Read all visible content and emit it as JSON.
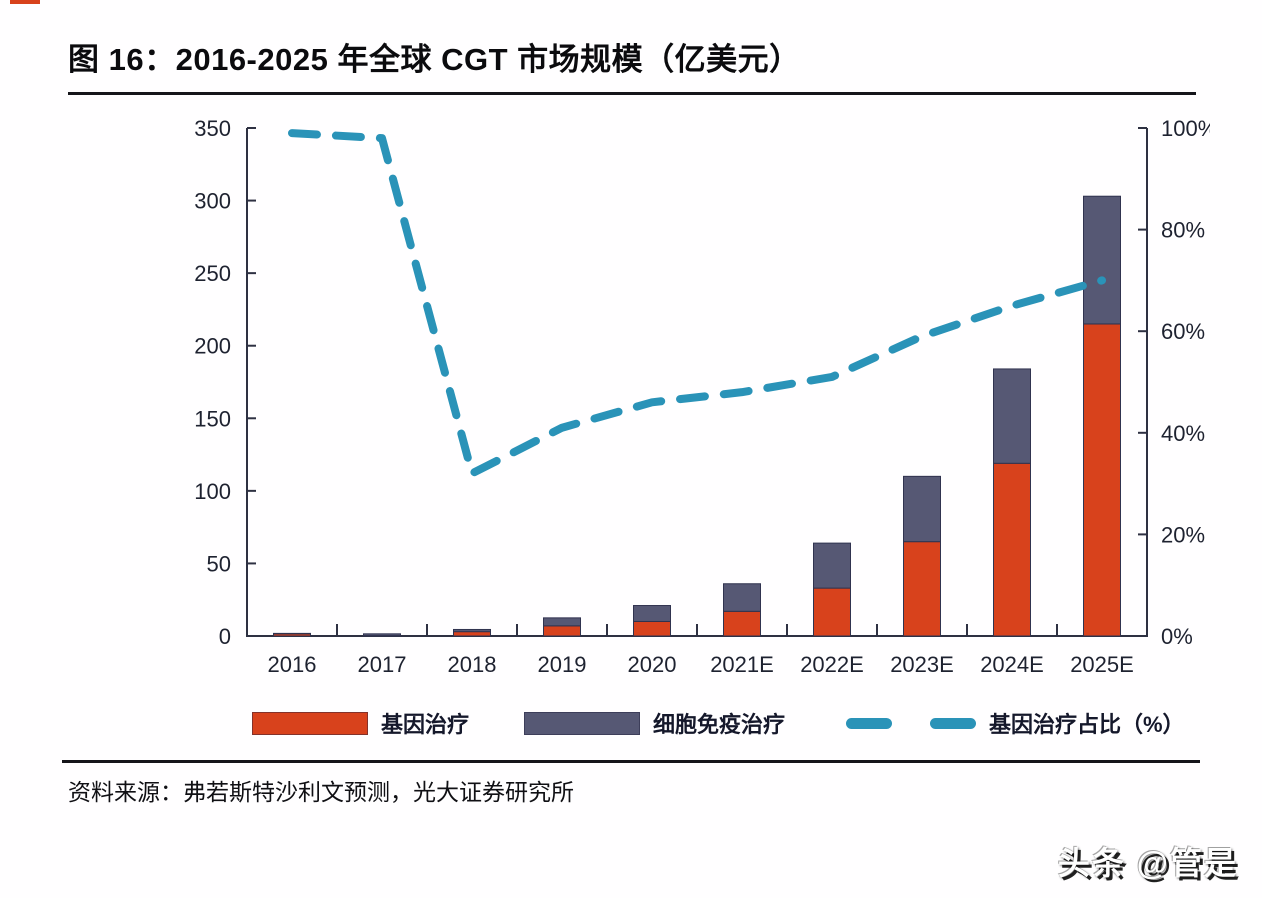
{
  "header": {
    "title": "图 16：2016-2025 年全球 CGT 市场规模（亿美元）"
  },
  "legend": {
    "items": [
      {
        "label": "基因治疗",
        "color": "#d8421c",
        "type": "bar"
      },
      {
        "label": "细胞免疫治疗",
        "color": "#565874",
        "type": "bar"
      },
      {
        "label": "基因治疗占比（%）",
        "color": "#2a93b8",
        "type": "dashed-line"
      }
    ]
  },
  "footer": {
    "source": "资料来源：弗若斯特沙利文预测，光大证券研究所",
    "watermark": "头条 @管是"
  },
  "colors": {
    "gene_therapy_bar": "#d8421c",
    "cell_immunotherapy_bar": "#565874",
    "share_line": "#2a93b8",
    "axis": "#2e3142",
    "text": "#1e2230",
    "rule": "#15151a",
    "corner_mark": "#d8421c"
  },
  "chart_data": {
    "type": "bar",
    "subtype": "stacked-bars-with-dashed-line-dual-axis",
    "title": "2016-2025 年全球 CGT 市场规模（亿美元）",
    "categories": [
      "2016",
      "2017",
      "2018",
      "2019",
      "2020",
      "2021E",
      "2022E",
      "2023E",
      "2024E",
      "2025E"
    ],
    "series": [
      {
        "name": "基因治疗",
        "type": "bar",
        "stack": "total",
        "axis": "left",
        "color": "#d8421c",
        "values": [
          1.5,
          0.3,
          3,
          7,
          10,
          17,
          33,
          65,
          119,
          215
        ]
      },
      {
        "name": "细胞免疫治疗",
        "type": "bar",
        "stack": "total",
        "axis": "left",
        "color": "#565874",
        "values": [
          0.3,
          1.2,
          1.5,
          5.5,
          11,
          19,
          31,
          45,
          65,
          88
        ]
      },
      {
        "name": "基因治疗占比（%）",
        "type": "line",
        "style": "dashed",
        "axis": "right",
        "color": "#2a93b8",
        "values": [
          99,
          98,
          32,
          41,
          46,
          48,
          51,
          59,
          65,
          70
        ]
      }
    ],
    "left_axis": {
      "min": 0,
      "max": 350,
      "tick_step": 50,
      "ticks": [
        "0",
        "50",
        "100",
        "150",
        "200",
        "250",
        "300",
        "350"
      ]
    },
    "right_axis": {
      "min": 0,
      "max": 100,
      "tick_step": 20,
      "ticks": [
        "0%",
        "20%",
        "40%",
        "60%",
        "80%",
        "100%"
      ]
    },
    "grid": false,
    "legend_position": "bottom",
    "xlabel": "",
    "ylabel_left": "亿美元",
    "ylabel_right": "%"
  }
}
